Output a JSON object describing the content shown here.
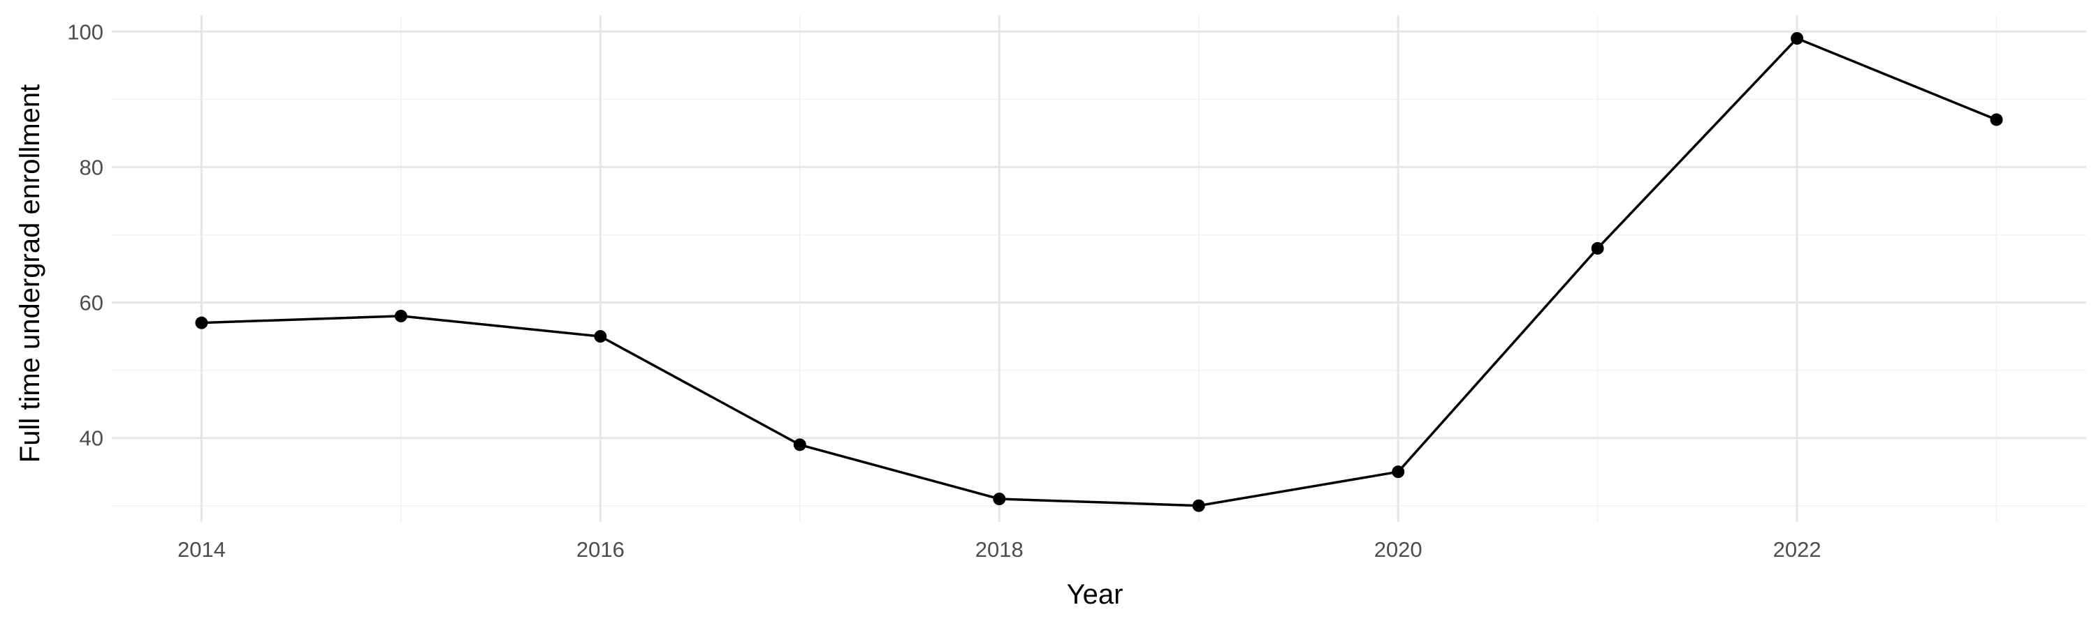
{
  "chart_data": {
    "type": "line",
    "title": "",
    "xlabel": "Year",
    "ylabel": "Full time undergrad enrollment",
    "x": [
      2014,
      2015,
      2016,
      2017,
      2018,
      2019,
      2020,
      2021,
      2022,
      2023
    ],
    "series": [
      {
        "values": [
          57,
          58,
          55,
          39,
          31,
          30,
          35,
          68,
          99,
          87
        ]
      }
    ],
    "x_ticks": [
      "2014",
      "2016",
      "2018",
      "2020",
      "2022"
    ],
    "y_ticks": [
      "40",
      "60",
      "80",
      "100"
    ],
    "xlim": [
      2013.55,
      2023.45
    ],
    "ylim": [
      27.6,
      102.4
    ],
    "grid": true,
    "legend": "none",
    "colors": {
      "line": "#000000",
      "points": "#000000",
      "grid": "#e6e6e6"
    }
  }
}
